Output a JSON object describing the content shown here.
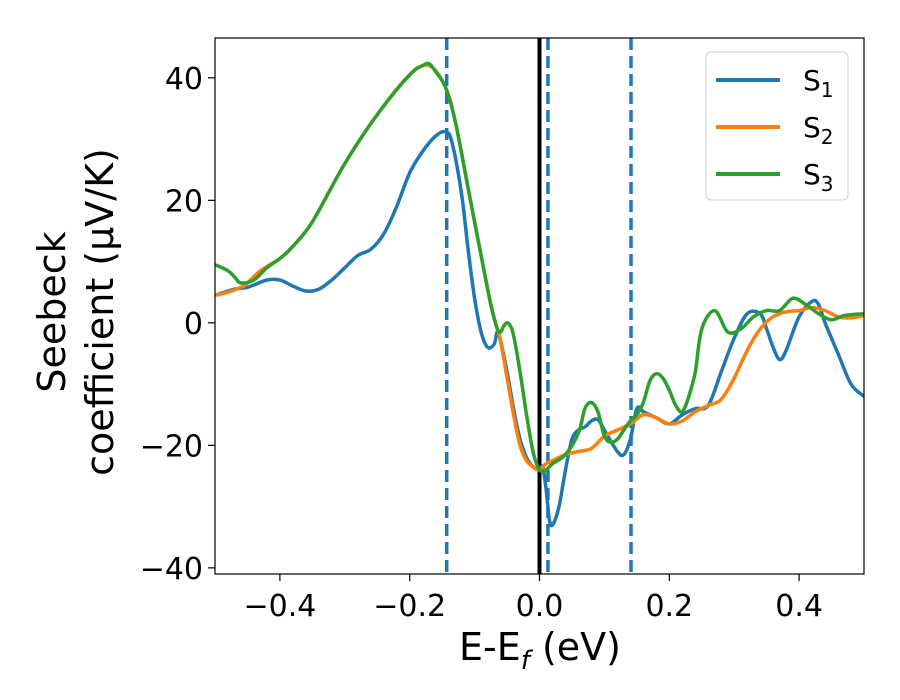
{
  "chart_data": {
    "type": "line",
    "xlabel": {
      "main": "E-E",
      "sub": "f",
      "unit": " (eV)"
    },
    "ylabel": {
      "line1": "Seebeck",
      "line2": "coefficient  (μV/K)"
    },
    "xlim": [
      -0.5,
      0.5
    ],
    "ylim": [
      -41,
      46.5
    ],
    "xticks": [
      -0.4,
      -0.2,
      0.0,
      0.2,
      0.4
    ],
    "xtick_labels": [
      "−0.4",
      "−0.2",
      "0.0",
      "0.2",
      "0.4"
    ],
    "yticks": [
      -40,
      -20,
      0,
      20,
      40
    ],
    "ytick_labels": [
      "−40",
      "−20",
      "0",
      "20",
      "40"
    ],
    "grid": false,
    "legend_position": "top-right",
    "vlines": [
      {
        "x": -0.143,
        "style": "dashed",
        "color": "#1f77b4"
      },
      {
        "x": 0.0,
        "style": "solid",
        "color": "#000000"
      },
      {
        "x": 0.013,
        "style": "dashed",
        "color": "#1f77b4"
      },
      {
        "x": 0.141,
        "style": "dashed",
        "color": "#1f77b4"
      }
    ],
    "series": [
      {
        "name": "S",
        "sub": "1",
        "color": "#1f77b4",
        "x": [
          -0.5,
          -0.47,
          -0.45,
          -0.42,
          -0.4,
          -0.38,
          -0.36,
          -0.34,
          -0.32,
          -0.3,
          -0.28,
          -0.26,
          -0.24,
          -0.22,
          -0.2,
          -0.18,
          -0.16,
          -0.145,
          -0.135,
          -0.12,
          -0.11,
          -0.1,
          -0.09,
          -0.08,
          -0.07,
          -0.065,
          -0.06,
          -0.05,
          -0.04,
          -0.03,
          -0.02,
          -0.01,
          0.0,
          0.005,
          0.01,
          0.015,
          0.02,
          0.03,
          0.04,
          0.05,
          0.06,
          0.07,
          0.08,
          0.09,
          0.1,
          0.12,
          0.13,
          0.14,
          0.15,
          0.16,
          0.17,
          0.18,
          0.2,
          0.22,
          0.24,
          0.26,
          0.28,
          0.3,
          0.32,
          0.34,
          0.35,
          0.36,
          0.37,
          0.38,
          0.4,
          0.42,
          0.43,
          0.44,
          0.46,
          0.48,
          0.5
        ],
        "y": [
          4.5,
          5.5,
          5.8,
          7,
          7,
          6,
          5.2,
          5.5,
          7,
          9,
          11,
          12,
          14.5,
          19,
          24.5,
          28,
          30.5,
          31.2,
          29.5,
          21,
          12,
          4,
          -1.5,
          -4,
          -3.5,
          -1.5,
          -3,
          -8,
          -14,
          -19,
          -22,
          -23.5,
          -24,
          -23.5,
          -27,
          -32,
          -33,
          -30,
          -24,
          -19,
          -17.5,
          -17,
          -16,
          -15.8,
          -17.5,
          -21,
          -21.5,
          -19,
          -14,
          -14.5,
          -15,
          -15.5,
          -16.5,
          -15,
          -14,
          -13.5,
          -8,
          -2.5,
          1.5,
          1.5,
          -1,
          -4,
          -6,
          -4.5,
          1,
          3.5,
          3,
          0,
          -5,
          -10,
          -12
        ]
      },
      {
        "name": "S",
        "sub": "2",
        "color": "#ff7f0e",
        "x": [
          -0.5,
          -0.48,
          -0.46,
          -0.45,
          -0.43,
          -0.4,
          -0.38,
          -0.35,
          -0.3,
          -0.25,
          -0.2,
          -0.17,
          -0.145,
          -0.13,
          -0.11,
          -0.09,
          -0.075,
          -0.065,
          -0.06,
          -0.05,
          -0.04,
          -0.03,
          -0.02,
          -0.01,
          0.0,
          0.01,
          0.02,
          0.04,
          0.06,
          0.08,
          0.1,
          0.12,
          0.14,
          0.16,
          0.18,
          0.2,
          0.22,
          0.24,
          0.26,
          0.28,
          0.3,
          0.32,
          0.34,
          0.36,
          0.38,
          0.4,
          0.42,
          0.44,
          0.46,
          0.48,
          0.5
        ],
        "y": [
          4.5,
          5,
          5.8,
          6.5,
          8.5,
          10.5,
          12.5,
          16.5,
          26,
          34,
          40.5,
          42,
          38.5,
          33,
          22,
          11,
          3,
          -1,
          -3,
          -9,
          -15,
          -20,
          -22.5,
          -23.5,
          -24,
          -23,
          -22.5,
          -21.5,
          -21,
          -20.5,
          -18.5,
          -17.5,
          -16.5,
          -15,
          -15.5,
          -16.5,
          -16,
          -14.5,
          -13.5,
          -12.5,
          -9,
          -4.5,
          -1,
          1,
          1.8,
          2,
          2.5,
          2,
          1,
          0.8,
          1.2
        ]
      },
      {
        "name": "S",
        "sub": "3",
        "color": "#2ca02c",
        "x": [
          -0.5,
          -0.48,
          -0.47,
          -0.46,
          -0.44,
          -0.42,
          -0.4,
          -0.38,
          -0.35,
          -0.3,
          -0.25,
          -0.2,
          -0.18,
          -0.17,
          -0.16,
          -0.145,
          -0.13,
          -0.11,
          -0.09,
          -0.075,
          -0.065,
          -0.06,
          -0.055,
          -0.05,
          -0.045,
          -0.04,
          -0.03,
          -0.02,
          -0.01,
          0.0,
          0.01,
          0.02,
          0.04,
          0.06,
          0.07,
          0.08,
          0.09,
          0.1,
          0.11,
          0.12,
          0.13,
          0.14,
          0.15,
          0.16,
          0.17,
          0.18,
          0.19,
          0.2,
          0.21,
          0.22,
          0.23,
          0.24,
          0.25,
          0.27,
          0.29,
          0.31,
          0.33,
          0.35,
          0.37,
          0.39,
          0.41,
          0.43,
          0.45,
          0.47,
          0.5
        ],
        "y": [
          9.5,
          8.5,
          7.5,
          6.5,
          7,
          9,
          10.5,
          12.5,
          16.5,
          26,
          34,
          40.5,
          42,
          42.3,
          41,
          38.5,
          33,
          22,
          11,
          3,
          -1,
          -1.5,
          -0.5,
          0,
          -0.5,
          -2,
          -8,
          -15,
          -21,
          -24,
          -24,
          -23,
          -21.5,
          -18,
          -14,
          -13,
          -14.5,
          -18.5,
          -19.5,
          -19,
          -17.5,
          -16,
          -15,
          -13,
          -9.5,
          -8.3,
          -9,
          -11,
          -13.5,
          -14.5,
          -12,
          -8,
          -1,
          2,
          -1.5,
          -1,
          1,
          2,
          2,
          4,
          3,
          1.5,
          0.5,
          1.2,
          1.5
        ]
      }
    ]
  }
}
